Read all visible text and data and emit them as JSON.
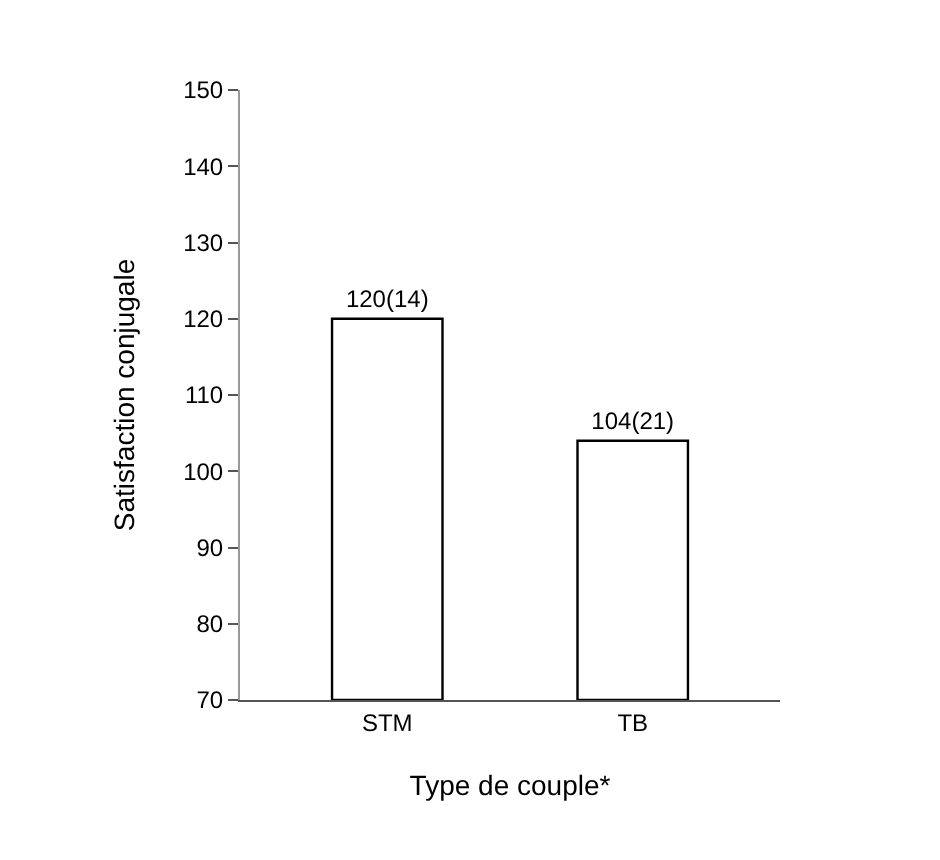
{
  "chart_data": {
    "type": "bar",
    "xlabel": "Type de couple*",
    "ylabel": "Satisfaction conjugale",
    "categories": [
      "STM",
      "TB"
    ],
    "values": [
      120,
      104
    ],
    "color": "#ffffff",
    "value_labels": [
      "120(14)",
      "104(21)"
    ],
    "ylim": [
      70,
      150
    ],
    "yticks": [
      70,
      80,
      90,
      100,
      110,
      120,
      130,
      140,
      150
    ],
    "grid": false,
    "legend": false
  }
}
